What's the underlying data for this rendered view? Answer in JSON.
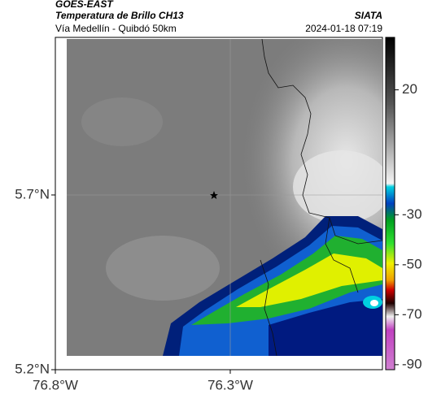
{
  "map": {
    "source": "GOES-EAST",
    "title": "Temperatura de Brillo CH13",
    "agency": "SIATA",
    "subtitle": "Vía Medellín - Quibdó 50km",
    "datetime": "2024-01-18 07:19",
    "xlim": [
      -76.8,
      -75.865
    ],
    "ylim": [
      5.2,
      6.151
    ],
    "xticks": [
      {
        "value": -76.8,
        "label": "76.8°W"
      },
      {
        "value": -76.3,
        "label": "76.3°W"
      }
    ],
    "yticks": [
      {
        "value": 5.7,
        "label": "5.7°N"
      },
      {
        "value": 5.2,
        "label": "5.2°N"
      }
    ],
    "colorbar": {
      "lim": [
        -92,
        41
      ],
      "ticks": [
        20,
        -30,
        -50,
        -70,
        -90
      ]
    }
  }
}
